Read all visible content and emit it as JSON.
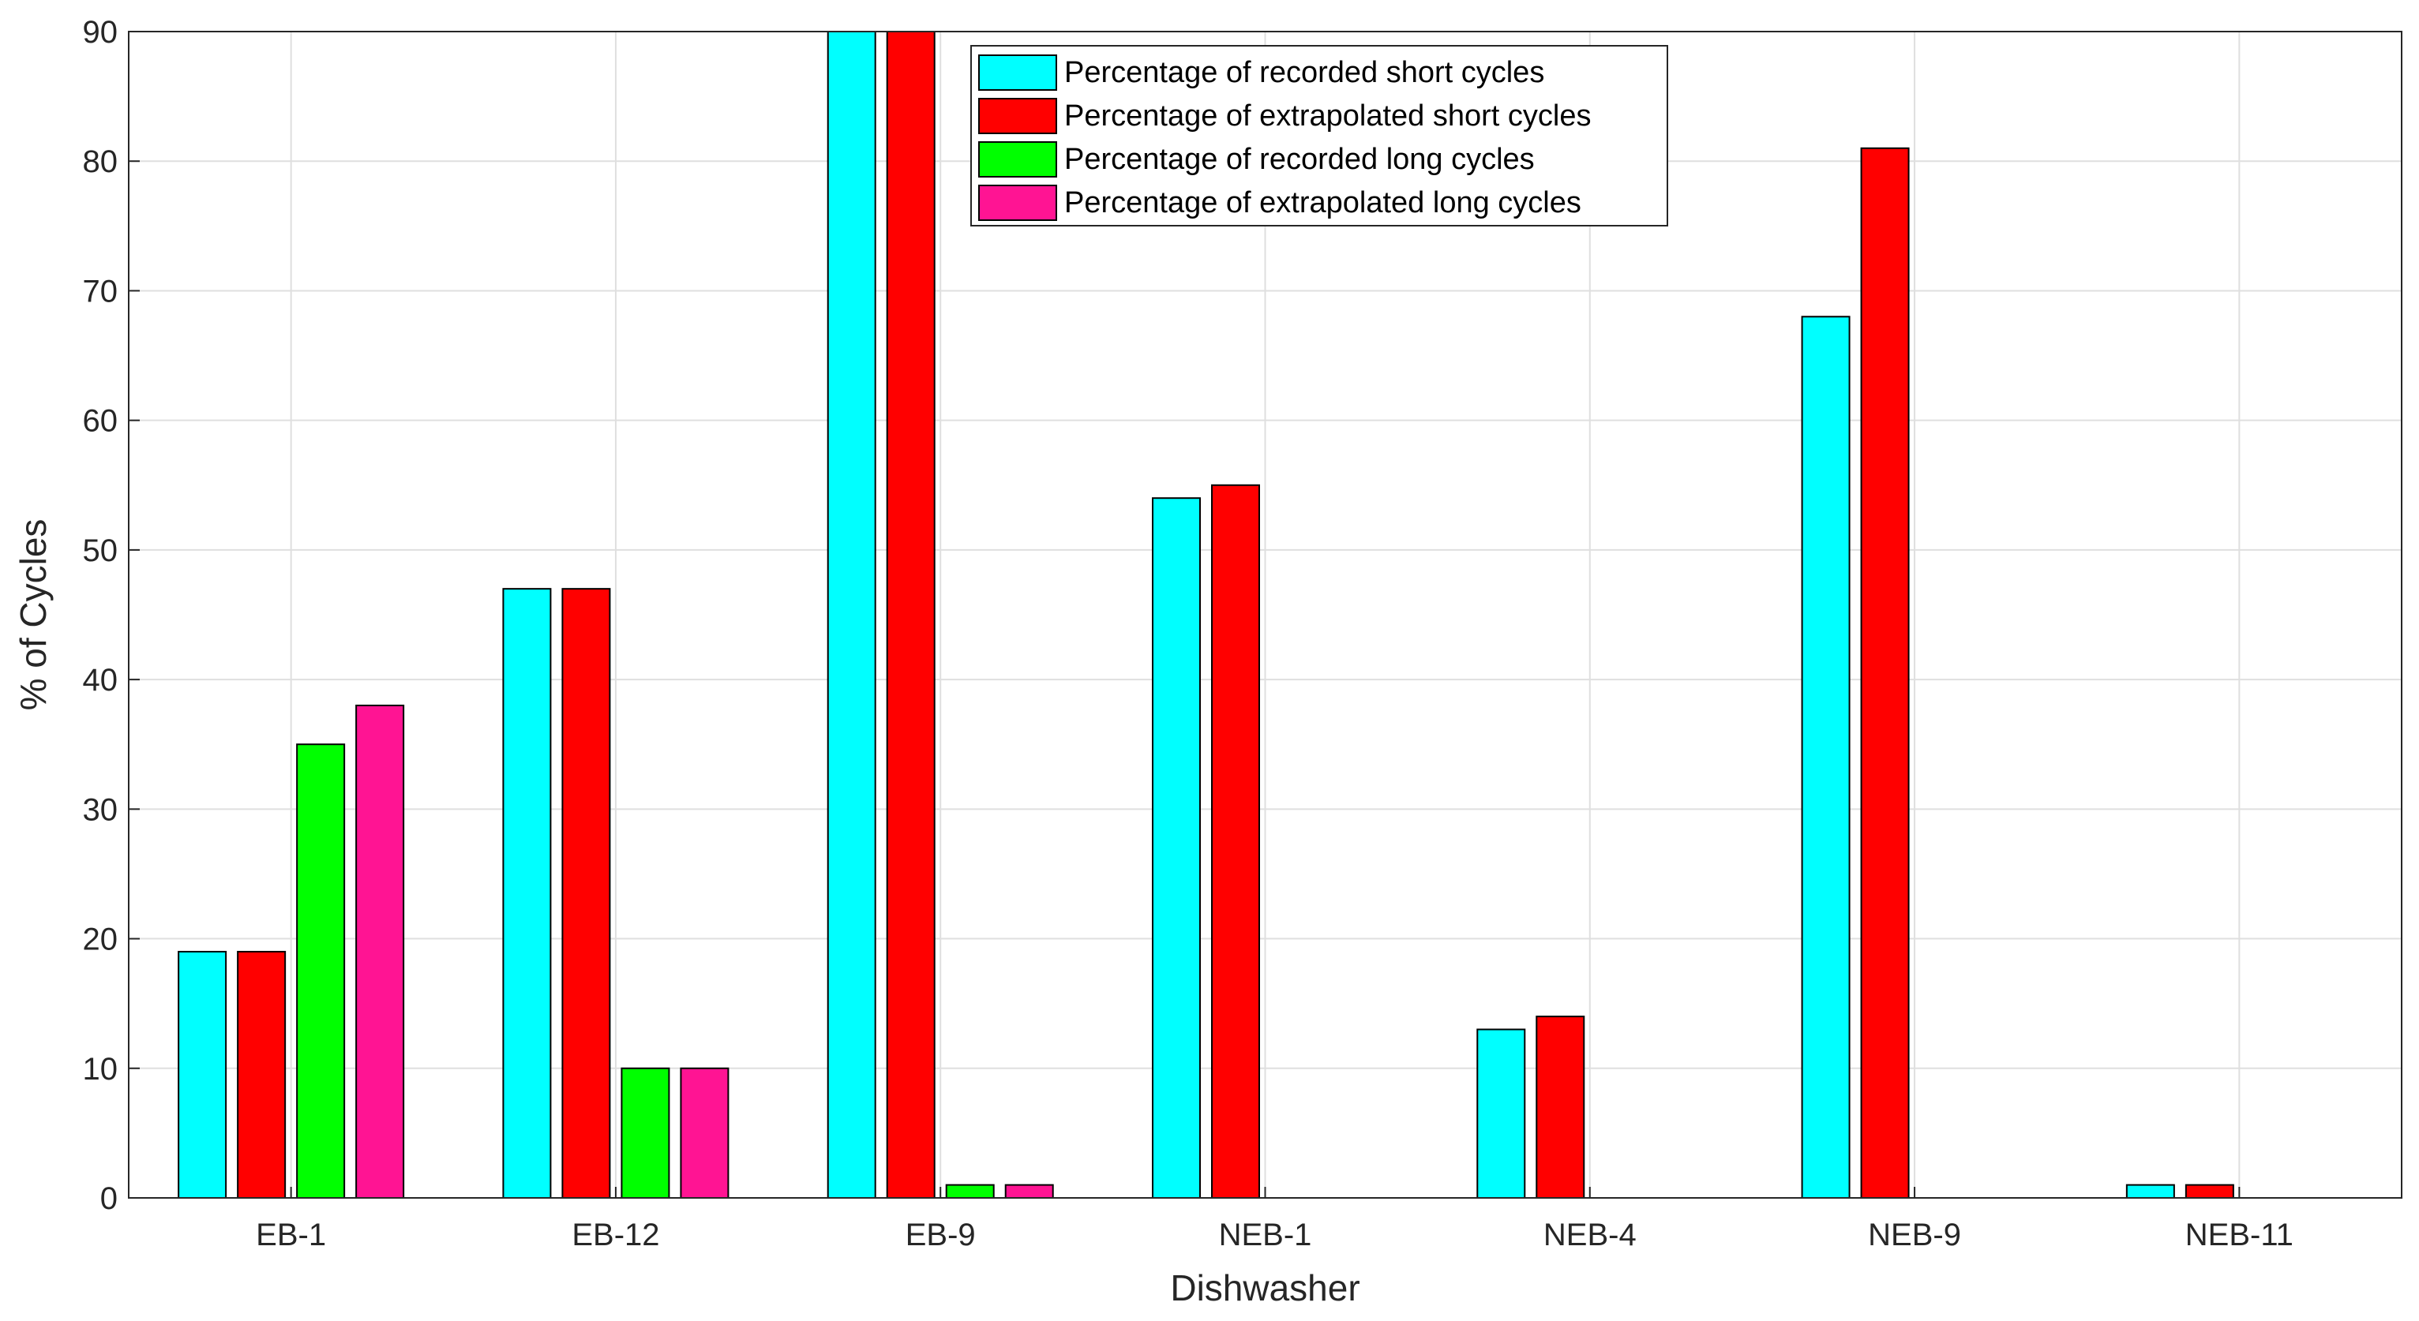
{
  "chart_data": {
    "type": "bar",
    "title": "",
    "xlabel": "Dishwasher",
    "ylabel": "% of Cycles",
    "categories": [
      "EB-1",
      "EB-12",
      "EB-9",
      "NEB-1",
      "NEB-4",
      "NEB-9",
      "NEB-11"
    ],
    "ylim": [
      0,
      90
    ],
    "yticks": [
      0,
      10,
      20,
      30,
      40,
      50,
      60,
      70,
      80,
      90
    ],
    "grid": true,
    "legend_position": "top-center",
    "series": [
      {
        "name": "Percentage of recorded short cycles",
        "color": "#00FFFF",
        "values": [
          19,
          47,
          90,
          54,
          13,
          68,
          1
        ]
      },
      {
        "name": "Percentage of extrapolated short cycles",
        "color": "#FF0000",
        "values": [
          19,
          47,
          90,
          55,
          14,
          81,
          1
        ]
      },
      {
        "name": "Percentage of recorded long cycles",
        "color": "#00FF00",
        "values": [
          35,
          10,
          1,
          0,
          0,
          0,
          0
        ]
      },
      {
        "name": "Percentage of extrapolated long cycles",
        "color": "#FF1493",
        "values": [
          38,
          10,
          1,
          0,
          0,
          0,
          0
        ]
      }
    ]
  }
}
